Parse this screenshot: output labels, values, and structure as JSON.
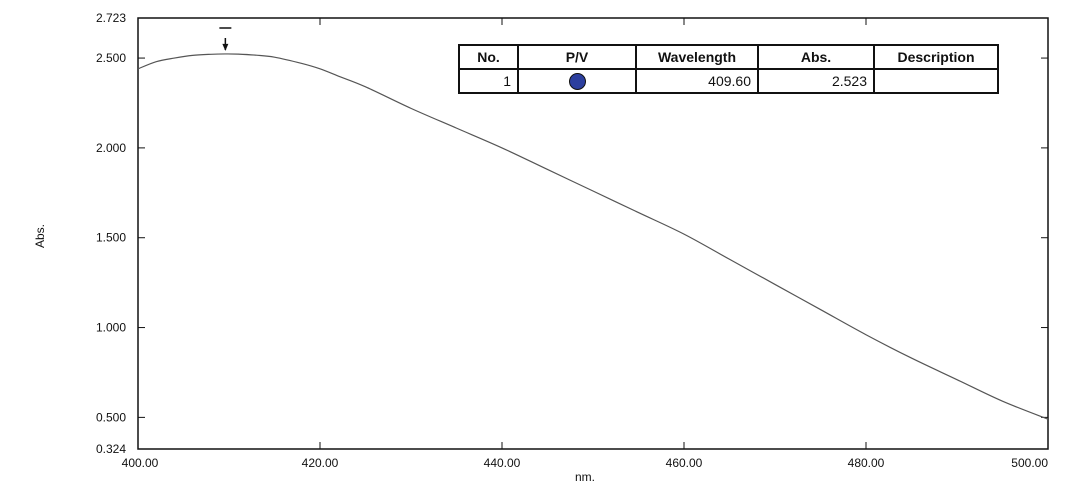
{
  "chart_data": {
    "type": "line",
    "xlabel": "nm.",
    "ylabel": "Abs.",
    "xlim": [
      400.0,
      500.0
    ],
    "ylim": [
      0.324,
      2.723
    ],
    "x_ticks": [
      "400.00",
      "420.00",
      "440.00",
      "460.00",
      "480.00",
      "500.00"
    ],
    "y_ticks": [
      "0.324",
      "0.500",
      "1.000",
      "1.500",
      "2.000",
      "2.500",
      "2.723"
    ],
    "series": [
      {
        "x": [
          400,
          402,
          404,
          406,
          408,
          409.6,
          411,
          413,
          415,
          418,
          420,
          422,
          425,
          430,
          435,
          440,
          445,
          450,
          455,
          460,
          465,
          470,
          475,
          480,
          485,
          490,
          495,
          500
        ],
        "y": [
          2.44,
          2.48,
          2.5,
          2.515,
          2.521,
          2.523,
          2.522,
          2.516,
          2.505,
          2.47,
          2.44,
          2.4,
          2.34,
          2.22,
          2.11,
          2.0,
          1.88,
          1.76,
          1.64,
          1.52,
          1.38,
          1.24,
          1.1,
          0.96,
          0.83,
          0.71,
          0.59,
          0.49
        ]
      }
    ],
    "peak_marker_x": 409.6,
    "color": "#555555"
  },
  "peak_table": {
    "headers": [
      "No.",
      "P/V",
      "Wavelength",
      "Abs.",
      "Description"
    ],
    "rows": [
      {
        "no": "1",
        "pv": "peak-dot-icon",
        "wavelength": "409.60",
        "abs": "2.523",
        "description": ""
      }
    ]
  }
}
